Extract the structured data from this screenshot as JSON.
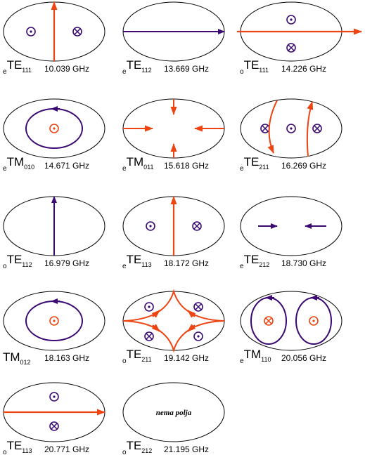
{
  "modes": [
    {
      "prefix": "e",
      "name": "TE",
      "index": "111",
      "frequency": "10.039 GHz"
    },
    {
      "prefix": "e",
      "name": "TE",
      "index": "112",
      "frequency": "13.669 GHz"
    },
    {
      "prefix": "o",
      "name": "TE",
      "index": "111",
      "frequency": "14.226 GHz"
    },
    {
      "prefix": "e",
      "name": "TM",
      "index": "010",
      "frequency": "14.671 GHz"
    },
    {
      "prefix": "e",
      "name": "TM",
      "index": "011",
      "frequency": "15.618 GHz"
    },
    {
      "prefix": "e",
      "name": "TE",
      "index": "211",
      "frequency": "16.269 GHz"
    },
    {
      "prefix": "o",
      "name": "TE",
      "index": "112",
      "frequency": "16.979 GHz"
    },
    {
      "prefix": "e",
      "name": "TE",
      "index": "113",
      "frequency": "18.172 GHz"
    },
    {
      "prefix": "e",
      "name": "TE",
      "index": "212",
      "frequency": "18.730 GHz"
    },
    {
      "name": "TM",
      "index": "012",
      "frequency": "18.163 GHz"
    },
    {
      "prefix": "o",
      "name": "TE",
      "index": "211",
      "frequency": "19.142 GHz"
    },
    {
      "prefix": "e",
      "name": "TM",
      "index": "110",
      "frequency": "20.056 GHz"
    },
    {
      "prefix": "o",
      "name": "TE",
      "index": "113",
      "frequency": "20.771 GHz"
    },
    {
      "prefix": "o",
      "name": "TE",
      "index": "212",
      "frequency": "21.195 GHz",
      "note": "nema polja"
    }
  ]
}
